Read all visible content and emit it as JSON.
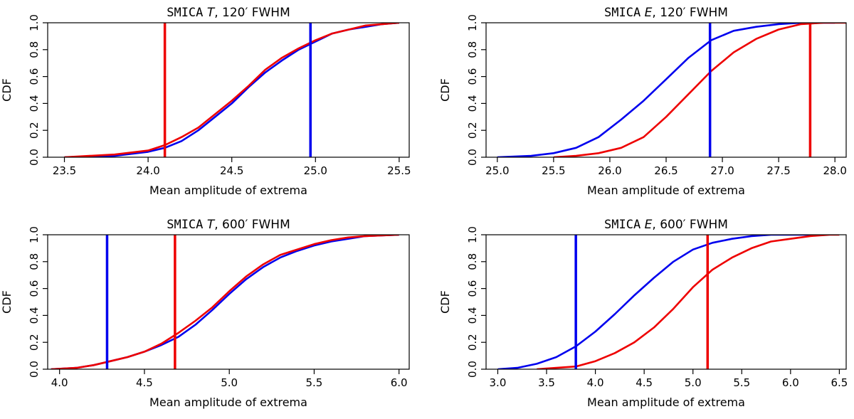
{
  "chart_data": [
    {
      "type": "line",
      "title": {
        "prefix": "SMICA",
        "variable": "T",
        "suffix": ", 120′ FWHM"
      },
      "xlabel": "Mean amplitude of extrema",
      "ylabel": "CDF",
      "xlim": [
        23.4,
        25.56
      ],
      "ylim": [
        0,
        1
      ],
      "xticks": [
        "23.5",
        "24.0",
        "24.5",
        "25.0",
        "25.5"
      ],
      "yticks": [
        "0.0",
        "0.2",
        "0.4",
        "0.6",
        "0.8",
        "1.0"
      ],
      "series": [
        {
          "name": "blue",
          "color": "#0000ee",
          "x": [
            23.5,
            23.8,
            24.0,
            24.1,
            24.2,
            24.3,
            24.4,
            24.5,
            24.6,
            24.7,
            24.8,
            24.9,
            25.0,
            25.1,
            25.2,
            25.3,
            25.4,
            25.5
          ],
          "y": [
            0.0,
            0.01,
            0.04,
            0.07,
            0.12,
            0.2,
            0.3,
            0.4,
            0.52,
            0.63,
            0.72,
            0.8,
            0.86,
            0.92,
            0.95,
            0.97,
            0.99,
            1.0
          ]
        },
        {
          "name": "red",
          "color": "#ee0000",
          "x": [
            23.5,
            23.8,
            24.0,
            24.1,
            24.2,
            24.3,
            24.4,
            24.5,
            24.6,
            24.7,
            24.8,
            24.9,
            25.0,
            25.1,
            25.2,
            25.3,
            25.4,
            25.5
          ],
          "y": [
            0.0,
            0.02,
            0.05,
            0.09,
            0.15,
            0.22,
            0.32,
            0.42,
            0.53,
            0.65,
            0.74,
            0.81,
            0.87,
            0.92,
            0.95,
            0.98,
            0.99,
            1.0
          ]
        }
      ],
      "vlines": [
        {
          "x": 24.1,
          "color": "#ee0000"
        },
        {
          "x": 24.97,
          "color": "#0000ee"
        }
      ]
    },
    {
      "type": "line",
      "title": {
        "prefix": "SMICA",
        "variable": "E",
        "suffix": ", 120′ FWHM"
      },
      "xlabel": "Mean amplitude of extrema",
      "ylabel": "CDF",
      "xlim": [
        24.9,
        28.1
      ],
      "ylim": [
        0,
        1
      ],
      "xticks": [
        "25.0",
        "25.5",
        "26.0",
        "26.5",
        "27.0",
        "27.5",
        "28.0"
      ],
      "yticks": [
        "0.0",
        "0.2",
        "0.4",
        "0.6",
        "0.8",
        "1.0"
      ],
      "series": [
        {
          "name": "blue",
          "color": "#0000ee",
          "x": [
            25.0,
            25.3,
            25.5,
            25.7,
            25.9,
            26.1,
            26.3,
            26.5,
            26.7,
            26.9,
            27.1,
            27.3,
            27.5,
            27.7,
            28.0
          ],
          "y": [
            0.0,
            0.01,
            0.03,
            0.07,
            0.15,
            0.28,
            0.42,
            0.58,
            0.74,
            0.87,
            0.94,
            0.97,
            0.99,
            1.0,
            1.0
          ]
        },
        {
          "name": "red",
          "color": "#ee0000",
          "x": [
            25.5,
            25.7,
            25.9,
            26.1,
            26.3,
            26.5,
            26.7,
            26.9,
            27.1,
            27.3,
            27.5,
            27.7,
            27.9,
            28.1
          ],
          "y": [
            0.0,
            0.01,
            0.03,
            0.07,
            0.15,
            0.3,
            0.47,
            0.64,
            0.78,
            0.88,
            0.95,
            0.99,
            1.0,
            1.0
          ]
        }
      ],
      "vlines": [
        {
          "x": 26.89,
          "color": "#0000ee"
        },
        {
          "x": 27.78,
          "color": "#ee0000"
        }
      ]
    },
    {
      "type": "line",
      "title": {
        "prefix": "SMICA",
        "variable": "T",
        "suffix": ", 600′ FWHM"
      },
      "xlabel": "Mean amplitude of extrema",
      "ylabel": "CDF",
      "xlim": [
        3.93,
        6.06
      ],
      "ylim": [
        0,
        1
      ],
      "xticks": [
        "4.0",
        "4.5",
        "5.0",
        "5.5",
        "6.0"
      ],
      "yticks": [
        "0.0",
        "0.2",
        "0.4",
        "0.6",
        "0.8",
        "1.0"
      ],
      "series": [
        {
          "name": "blue",
          "color": "#0000ee",
          "x": [
            3.95,
            4.1,
            4.2,
            4.3,
            4.4,
            4.5,
            4.6,
            4.7,
            4.8,
            4.9,
            5.0,
            5.1,
            5.2,
            5.3,
            5.4,
            5.5,
            5.6,
            5.7,
            5.8,
            6.0
          ],
          "y": [
            0.0,
            0.01,
            0.03,
            0.06,
            0.09,
            0.13,
            0.18,
            0.24,
            0.33,
            0.44,
            0.56,
            0.67,
            0.76,
            0.83,
            0.88,
            0.92,
            0.95,
            0.97,
            0.99,
            1.0
          ]
        },
        {
          "name": "red",
          "color": "#ee0000",
          "x": [
            3.95,
            4.1,
            4.2,
            4.3,
            4.4,
            4.5,
            4.6,
            4.7,
            4.8,
            4.9,
            5.0,
            5.1,
            5.2,
            5.3,
            5.4,
            5.5,
            5.6,
            5.7,
            5.8,
            6.0
          ],
          "y": [
            0.0,
            0.01,
            0.03,
            0.06,
            0.09,
            0.13,
            0.19,
            0.27,
            0.36,
            0.46,
            0.58,
            0.69,
            0.78,
            0.85,
            0.89,
            0.93,
            0.96,
            0.98,
            0.99,
            1.0
          ]
        }
      ],
      "vlines": [
        {
          "x": 4.28,
          "color": "#0000ee"
        },
        {
          "x": 4.68,
          "color": "#ee0000"
        }
      ]
    },
    {
      "type": "line",
      "title": {
        "prefix": "SMICA",
        "variable": "E",
        "suffix": ", 600′ FWHM"
      },
      "xlabel": "Mean amplitude of extrema",
      "ylabel": "CDF",
      "xlim": [
        2.88,
        6.57
      ],
      "ylim": [
        0,
        1
      ],
      "xticks": [
        "3.0",
        "3.5",
        "4.0",
        "4.5",
        "5.0",
        "5.5",
        "6.0",
        "6.5"
      ],
      "yticks": [
        "0.0",
        "0.2",
        "0.4",
        "0.6",
        "0.8",
        "1.0"
      ],
      "series": [
        {
          "name": "blue",
          "color": "#0000ee",
          "x": [
            3.0,
            3.2,
            3.4,
            3.6,
            3.8,
            4.0,
            4.2,
            4.4,
            4.6,
            4.8,
            5.0,
            5.2,
            5.4,
            5.6,
            5.8,
            6.0,
            6.3
          ],
          "y": [
            0.0,
            0.01,
            0.04,
            0.09,
            0.17,
            0.28,
            0.41,
            0.55,
            0.68,
            0.8,
            0.89,
            0.94,
            0.97,
            0.99,
            1.0,
            1.0,
            1.0
          ]
        },
        {
          "name": "red",
          "color": "#ee0000",
          "x": [
            3.4,
            3.6,
            3.8,
            4.0,
            4.2,
            4.4,
            4.6,
            4.8,
            5.0,
            5.2,
            5.4,
            5.6,
            5.8,
            6.0,
            6.2,
            6.4,
            6.5
          ],
          "y": [
            0.0,
            0.01,
            0.02,
            0.06,
            0.12,
            0.2,
            0.31,
            0.45,
            0.61,
            0.74,
            0.83,
            0.9,
            0.95,
            0.97,
            0.99,
            1.0,
            1.0
          ]
        }
      ],
      "vlines": [
        {
          "x": 3.8,
          "color": "#0000ee"
        },
        {
          "x": 5.15,
          "color": "#ee0000"
        }
      ]
    }
  ]
}
